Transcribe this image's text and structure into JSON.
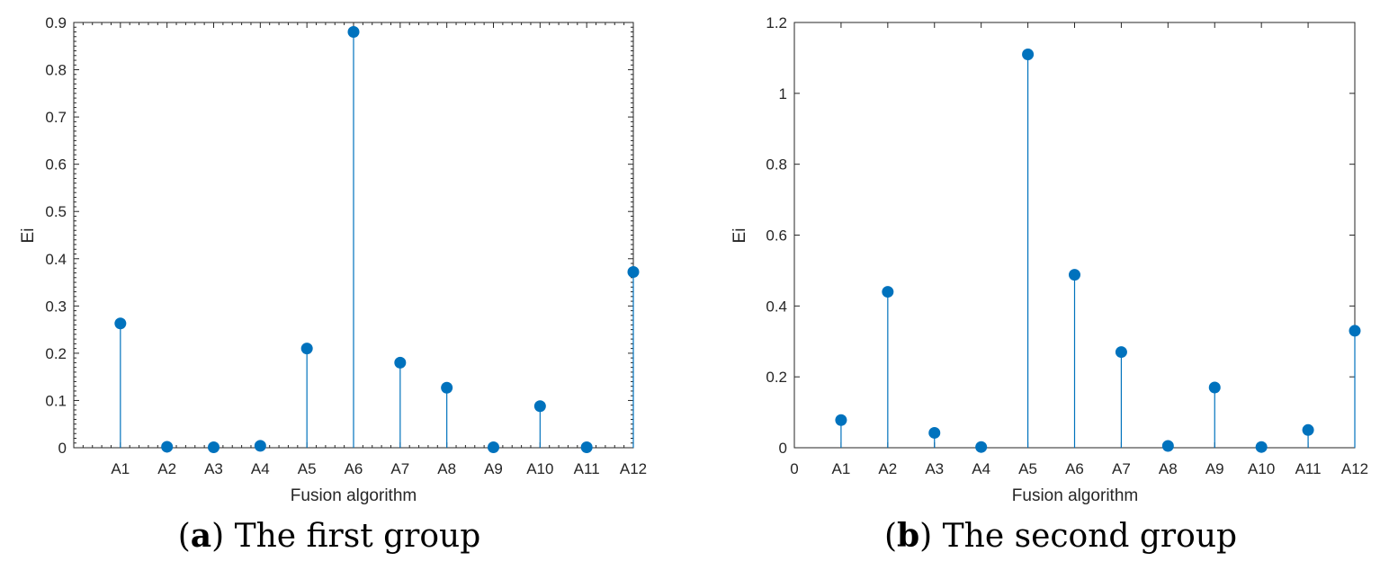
{
  "chart_data": [
    {
      "type": "stem",
      "panel_id": "a",
      "categories": [
        "A1",
        "A2",
        "A3",
        "A4",
        "A5",
        "A6",
        "A7",
        "A8",
        "A9",
        "A10",
        "A11",
        "A12"
      ],
      "values": [
        0.263,
        0.002,
        0.001,
        0.004,
        0.21,
        0.88,
        0.18,
        0.127,
        0.001,
        0.088,
        0.001,
        0.372
      ],
      "xlabel": "Fusion algorithm",
      "ylabel": "Ei",
      "ylim": [
        0,
        0.9
      ],
      "yticks": [
        0,
        0.1,
        0.2,
        0.3,
        0.4,
        0.5,
        0.6,
        0.7,
        0.8,
        0.9
      ],
      "ytick_labels": [
        "0",
        "0.1",
        "0.2",
        "0.3",
        "0.4",
        "0.5",
        "0.6",
        "0.7",
        "0.8",
        "0.9"
      ],
      "xlim": [
        0,
        12
      ],
      "x_zero_label": "",
      "minor_ticks": true,
      "grid": false,
      "color": "#0072BD",
      "caption": {
        "letter": "a",
        "text": "The first group"
      }
    },
    {
      "type": "stem",
      "panel_id": "b",
      "categories": [
        "A1",
        "A2",
        "A3",
        "A4",
        "A5",
        "A6",
        "A7",
        "A8",
        "A9",
        "A10",
        "A11",
        "A12"
      ],
      "values": [
        0.078,
        0.44,
        0.042,
        0.002,
        1.11,
        0.488,
        0.27,
        0.005,
        0.17,
        0.002,
        0.05,
        0.33
      ],
      "xlabel": "Fusion algorithm",
      "ylabel": "Ei",
      "ylim": [
        0,
        1.2
      ],
      "yticks": [
        0,
        0.2,
        0.4,
        0.6,
        0.8,
        1.0,
        1.2
      ],
      "ytick_labels": [
        "0",
        "0.2",
        "0.4",
        "0.6",
        "0.8",
        "1",
        "1.2"
      ],
      "xlim": [
        0,
        12
      ],
      "x_zero_label": "0",
      "minor_ticks": false,
      "grid": false,
      "color": "#0072BD",
      "caption": {
        "letter": "b",
        "text": "The second group"
      }
    }
  ]
}
